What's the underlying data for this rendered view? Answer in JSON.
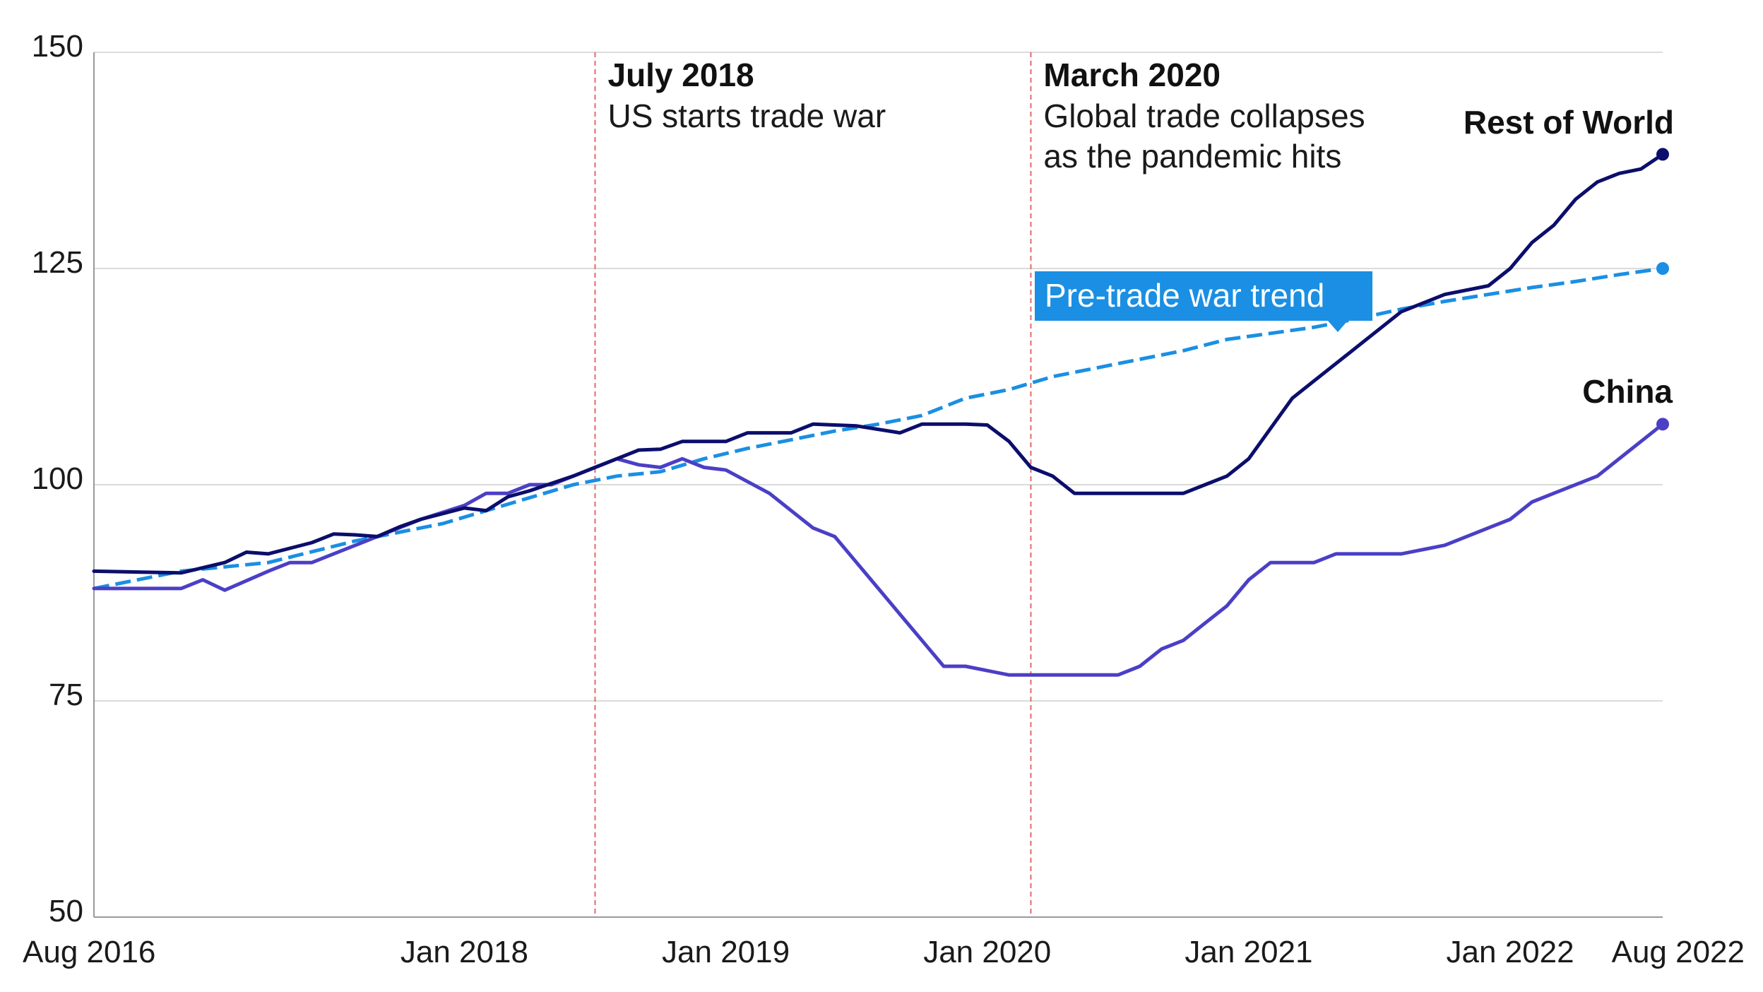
{
  "chart_data": {
    "type": "line",
    "title": "",
    "xlabel": "",
    "ylabel": "",
    "ylim": [
      50,
      150
    ],
    "yticks": [
      50,
      75,
      100,
      125,
      150
    ],
    "x_range": [
      "2016-08",
      "2022-08"
    ],
    "x_ticks": [
      {
        "label": "Aug 2016",
        "month": 0
      },
      {
        "label": "Jan 2018",
        "month": 17
      },
      {
        "label": "Jan 2019",
        "month": 29
      },
      {
        "label": "Jan 2020",
        "month": 41
      },
      {
        "label": "Jan 2021",
        "month": 53
      },
      {
        "label": "Jan 2022",
        "month": 65
      },
      {
        "label": "Aug 2022",
        "month": 72
      }
    ],
    "series": [
      {
        "name": "Rest of World",
        "label": "Rest of World",
        "color": "#0b0e6b",
        "style": "solid",
        "months": [
          0,
          2,
          4,
          6,
          7,
          8,
          10,
          11,
          12,
          13,
          14,
          15,
          17,
          18,
          19,
          20,
          22,
          23,
          24,
          25,
          26,
          27,
          28,
          29,
          30,
          32,
          33,
          34,
          35,
          37,
          38,
          39,
          40,
          41,
          42,
          43,
          44,
          45,
          46,
          47,
          49,
          50,
          51,
          52,
          53,
          55,
          56,
          58,
          60,
          62,
          64,
          65,
          66,
          67,
          68,
          69,
          70,
          71,
          72
        ],
        "values": [
          90,
          89.9,
          89.8,
          91,
          92.2,
          92,
          93.3,
          94.3,
          94.2,
          94,
          95.1,
          96,
          97.3,
          97,
          98.6,
          99.3,
          101,
          102,
          103,
          104,
          104.1,
          105,
          105,
          105,
          106,
          106,
          107,
          106.9,
          106.8,
          106,
          107,
          107,
          107,
          106.9,
          105,
          102,
          101,
          99,
          99,
          99,
          99,
          99,
          100,
          101,
          103,
          110,
          112,
          116,
          120,
          122,
          123,
          125,
          128,
          130,
          133,
          135,
          136,
          136.5,
          138.2
        ]
      },
      {
        "name": "China",
        "label": "China",
        "color": "#4b3fc6",
        "style": "solid",
        "months": [
          0,
          2,
          4,
          5,
          6,
          8,
          9,
          10,
          11,
          12,
          13,
          14,
          15,
          17,
          18,
          19,
          20,
          21,
          22,
          24,
          25,
          26,
          27,
          28,
          29,
          31,
          32,
          33,
          34,
          35,
          36,
          37,
          38,
          39,
          40,
          42,
          43,
          44,
          45,
          46,
          47,
          48,
          49,
          50,
          51,
          52,
          53,
          54,
          55,
          56,
          57,
          58,
          60,
          62,
          64,
          65,
          66,
          67,
          69,
          70,
          71,
          72
        ],
        "values": [
          88,
          88,
          88,
          89,
          87.8,
          90,
          91,
          91,
          92,
          93,
          94,
          95,
          96,
          97.6,
          99,
          99,
          100,
          100,
          101,
          103,
          102.3,
          102,
          103,
          102,
          101.7,
          99,
          97,
          95,
          94,
          91,
          88,
          85,
          82,
          79,
          79,
          78,
          78,
          78,
          78,
          78,
          78,
          79,
          81,
          82,
          84,
          86,
          89,
          91,
          91,
          91,
          92,
          92,
          92,
          93,
          95,
          96,
          98,
          99,
          101,
          103,
          105,
          107
        ]
      },
      {
        "name": "Pre-trade war trend",
        "label": "Pre-trade war trend",
        "color": "#1a8fe3",
        "style": "dashed",
        "months": [
          0,
          4,
          8,
          12,
          16,
          20,
          22,
          24,
          26,
          28,
          30,
          32,
          34,
          36,
          38,
          40,
          42,
          44,
          46,
          48,
          50,
          52,
          54,
          56,
          58,
          60,
          62,
          64,
          66,
          68,
          70,
          72
        ],
        "values": [
          88,
          90,
          91,
          93.5,
          95.5,
          98.5,
          100,
          101,
          101.5,
          103,
          104.2,
          105.2,
          106.2,
          107,
          108,
          110,
          111,
          112.5,
          113.5,
          114.5,
          115.5,
          116.8,
          117.5,
          118.2,
          119.2,
          120.3,
          121.2,
          122,
          122.8,
          123.5,
          124.3,
          125
        ]
      }
    ],
    "annotations": [
      {
        "month": 23,
        "color": "#e36a6a",
        "title": "July 2018",
        "lines": [
          "US starts trade war"
        ]
      },
      {
        "month": 43,
        "color": "#e36a6a",
        "title": "March 2020",
        "lines": [
          "Global trade collapses",
          "as the pandemic hits"
        ]
      }
    ],
    "gridlines": true
  }
}
